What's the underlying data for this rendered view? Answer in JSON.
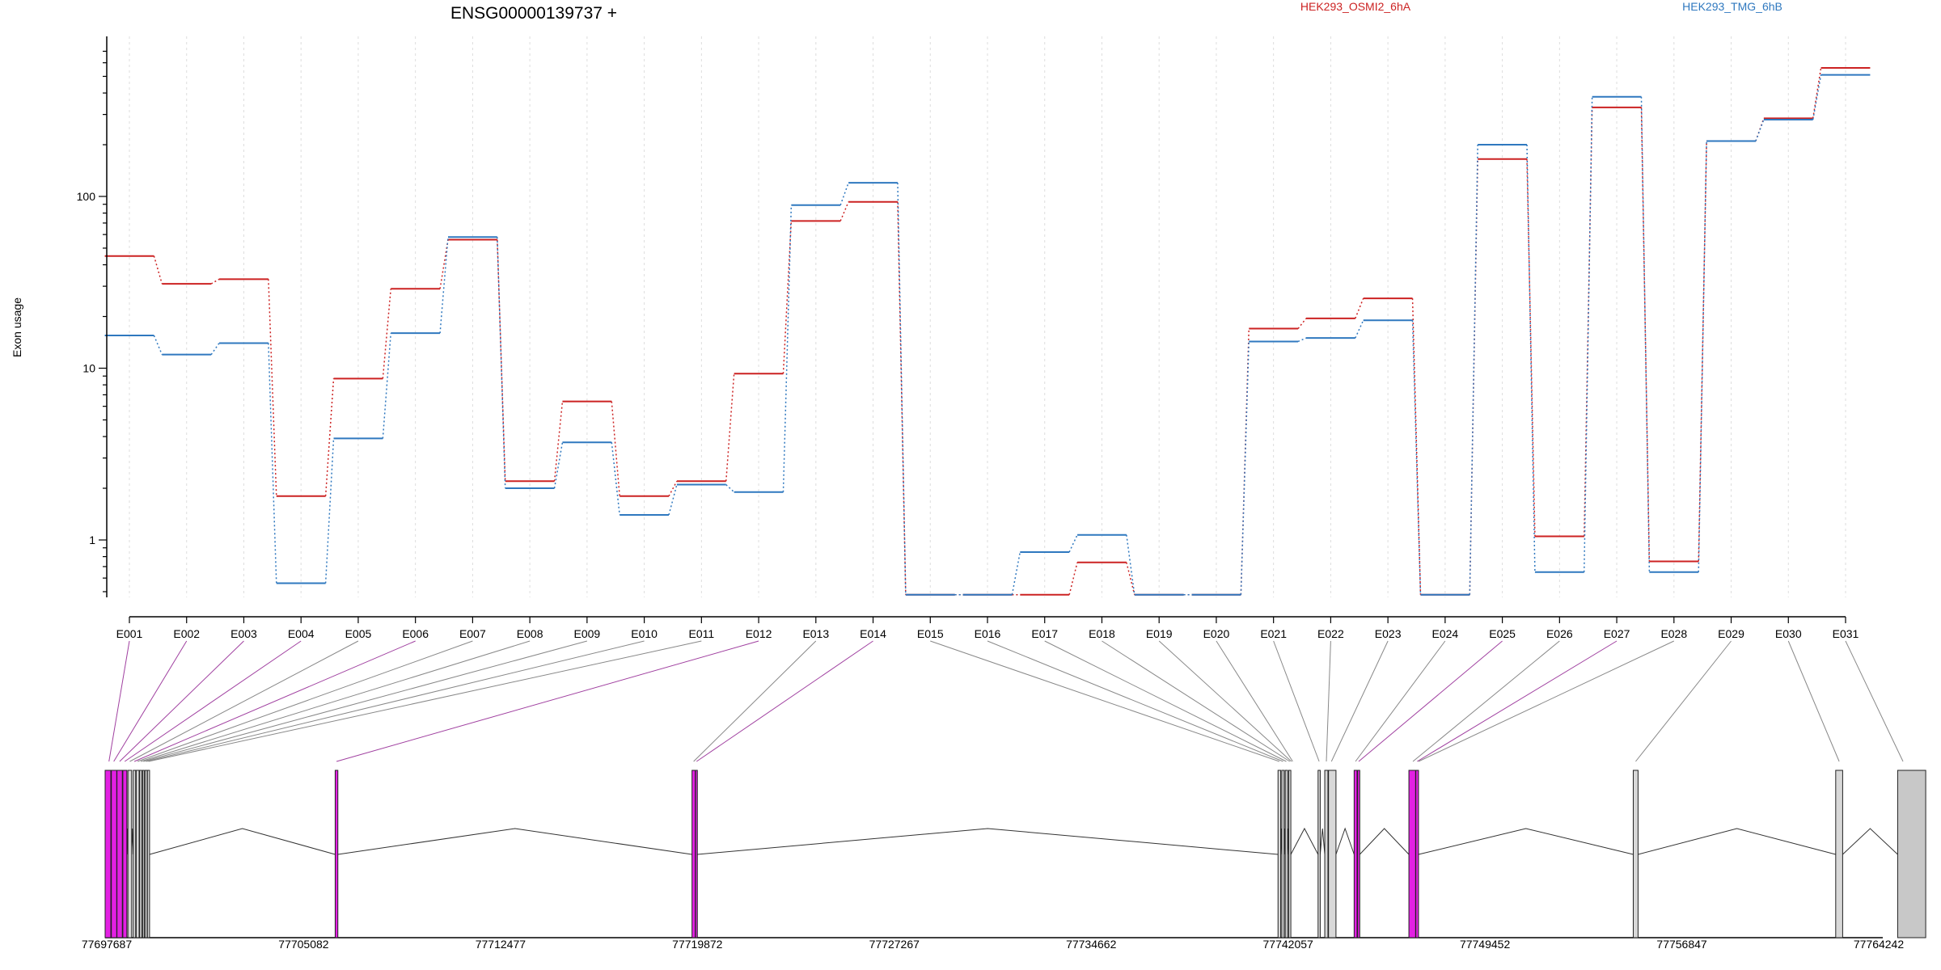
{
  "chart_data": {
    "type": "line",
    "title": "ENSG00000139737 +",
    "ylabel": "Exon usage",
    "yscale": "log",
    "ylim": [
      0.45,
      700
    ],
    "yticks": [
      1,
      10,
      100
    ],
    "ytick_labels": [
      "1",
      "10",
      "100"
    ],
    "grid": "vertical dashed",
    "legend_placement": "top",
    "categories": [
      "E001",
      "E002",
      "E003",
      "E004",
      "E005",
      "E006",
      "E007",
      "E008",
      "E009",
      "E010",
      "E011",
      "E012",
      "E013",
      "E014",
      "E015",
      "E016",
      "E017",
      "E018",
      "E019",
      "E020",
      "E021",
      "E022",
      "E023",
      "E024",
      "E025",
      "E026",
      "E027",
      "E028",
      "E029",
      "E030",
      "E031"
    ],
    "series": [
      {
        "name": "HEK293_OSMI2_6hA",
        "color": "#cc2222",
        "values": [
          45,
          31,
          33,
          1.8,
          8.7,
          29,
          56,
          2.2,
          6.4,
          1.8,
          2.2,
          9.3,
          72,
          93,
          0.48,
          0.48,
          0.48,
          0.74,
          0.48,
          0.48,
          17,
          19.5,
          25.5,
          0.48,
          165,
          1.05,
          330,
          0.75,
          210,
          285,
          560
        ]
      },
      {
        "name": "HEK293_TMG_6hB",
        "color": "#2f78bf",
        "values": [
          15.5,
          12,
          14,
          0.56,
          3.9,
          16,
          58,
          2,
          3.7,
          1.4,
          2.1,
          1.9,
          89,
          120,
          0.48,
          0.48,
          0.85,
          1.07,
          0.48,
          0.48,
          14.3,
          15,
          19,
          0.48,
          200,
          0.65,
          380,
          0.65,
          210,
          280,
          510
        ]
      }
    ],
    "gene_model": {
      "coordinate_ticks": [
        "77697687",
        "77705082",
        "77712477",
        "77719872",
        "77727267",
        "77734662",
        "77742057",
        "77749452",
        "77756847",
        "77764242"
      ],
      "start": 77697687,
      "end": 77764242,
      "exons": [
        {
          "start": 77697687,
          "end": 77697900,
          "color": "#e320e3"
        },
        {
          "start": 77697920,
          "end": 77698120,
          "color": "#e320e3"
        },
        {
          "start": 77698130,
          "end": 77698330,
          "color": "#e320e3"
        },
        {
          "start": 77698350,
          "end": 77698500,
          "color": "#e320e3"
        },
        {
          "start": 77698540,
          "end": 77698680,
          "color": "#d8d8d8"
        },
        {
          "start": 77698740,
          "end": 77698830,
          "color": "#d8d8d8"
        },
        {
          "start": 77698850,
          "end": 77698960,
          "color": "#d8d8d8"
        },
        {
          "start": 77698980,
          "end": 77699060,
          "color": "#d8d8d8"
        },
        {
          "start": 77699090,
          "end": 77699150,
          "color": "#d8d8d8"
        },
        {
          "start": 77699180,
          "end": 77699260,
          "color": "#d8d8d8"
        },
        {
          "start": 77699270,
          "end": 77699350,
          "color": "#d8d8d8"
        },
        {
          "start": 77706300,
          "end": 77706400,
          "color": "#e320e3"
        },
        {
          "start": 77719660,
          "end": 77719780,
          "color": "#e320e3"
        },
        {
          "start": 77719790,
          "end": 77719860,
          "color": "#e320e3"
        },
        {
          "start": 77741600,
          "end": 77741700,
          "color": "#d8d8d8"
        },
        {
          "start": 77741740,
          "end": 77741830,
          "color": "#d8d8d8"
        },
        {
          "start": 77741870,
          "end": 77741960,
          "color": "#d8d8d8"
        },
        {
          "start": 77742000,
          "end": 77742080,
          "color": "#d8d8d8"
        },
        {
          "start": 77743100,
          "end": 77743180,
          "color": "#d8d8d8"
        },
        {
          "start": 77743350,
          "end": 77743470,
          "color": "#d8d8d8"
        },
        {
          "start": 77743490,
          "end": 77743770,
          "color": "#d8d8d8"
        },
        {
          "start": 77744450,
          "end": 77744560,
          "color": "#e320e3"
        },
        {
          "start": 77744580,
          "end": 77744660,
          "color": "#e320e3"
        },
        {
          "start": 77746500,
          "end": 77746750,
          "color": "#e320e3"
        },
        {
          "start": 77746760,
          "end": 77746860,
          "color": "#e320e3"
        },
        {
          "start": 77754900,
          "end": 77755080,
          "color": "#d8d8d8"
        },
        {
          "start": 77762480,
          "end": 77762740,
          "color": "#d8d8d8"
        },
        {
          "start": 77764800,
          "end": 77765850,
          "color": "#c8c8c8"
        }
      ],
      "exon_links": [
        {
          "exon": "E001",
          "genomic": 77697830,
          "color": "#a040a0"
        },
        {
          "exon": "E002",
          "genomic": 77698010,
          "color": "#a040a0"
        },
        {
          "exon": "E003",
          "genomic": 77698230,
          "color": "#a040a0"
        },
        {
          "exon": "E004",
          "genomic": 77698420,
          "color": "#a040a0"
        },
        {
          "exon": "E005",
          "genomic": 77698610,
          "color": "#888888"
        },
        {
          "exon": "E006",
          "genomic": 77698780,
          "color": "#a040a0"
        },
        {
          "exon": "E007",
          "genomic": 77698900,
          "color": "#888888"
        },
        {
          "exon": "E008",
          "genomic": 77699020,
          "color": "#888888"
        },
        {
          "exon": "E009",
          "genomic": 77699120,
          "color": "#888888"
        },
        {
          "exon": "E010",
          "genomic": 77699220,
          "color": "#888888"
        },
        {
          "exon": "E011",
          "genomic": 77699310,
          "color": "#888888"
        },
        {
          "exon": "E012",
          "genomic": 77706350,
          "color": "#a040a0"
        },
        {
          "exon": "E013",
          "genomic": 77719720,
          "color": "#888888"
        },
        {
          "exon": "E014",
          "genomic": 77719830,
          "color": "#a040a0"
        },
        {
          "exon": "E015",
          "genomic": 77741650,
          "color": "#888888"
        },
        {
          "exon": "E016",
          "genomic": 77741790,
          "color": "#888888"
        },
        {
          "exon": "E017",
          "genomic": 77741910,
          "color": "#888888"
        },
        {
          "exon": "E018",
          "genomic": 77742040,
          "color": "#888888"
        },
        {
          "exon": "E019",
          "genomic": 77742100,
          "color": "#888888"
        },
        {
          "exon": "E020",
          "genomic": 77742150,
          "color": "#888888"
        },
        {
          "exon": "E021",
          "genomic": 77743140,
          "color": "#888888"
        },
        {
          "exon": "E022",
          "genomic": 77743410,
          "color": "#888888"
        },
        {
          "exon": "E023",
          "genomic": 77743600,
          "color": "#888888"
        },
        {
          "exon": "E024",
          "genomic": 77744500,
          "color": "#888888"
        },
        {
          "exon": "E025",
          "genomic": 77744620,
          "color": "#a040a0"
        },
        {
          "exon": "E026",
          "genomic": 77746650,
          "color": "#888888"
        },
        {
          "exon": "E027",
          "genomic": 77746810,
          "color": "#a040a0"
        },
        {
          "exon": "E028",
          "genomic": 77746860,
          "color": "#888888"
        },
        {
          "exon": "E029",
          "genomic": 77754990,
          "color": "#888888"
        },
        {
          "exon": "E030",
          "genomic": 77762610,
          "color": "#888888"
        },
        {
          "exon": "E031",
          "genomic": 77765000,
          "color": "#888888"
        }
      ]
    }
  }
}
